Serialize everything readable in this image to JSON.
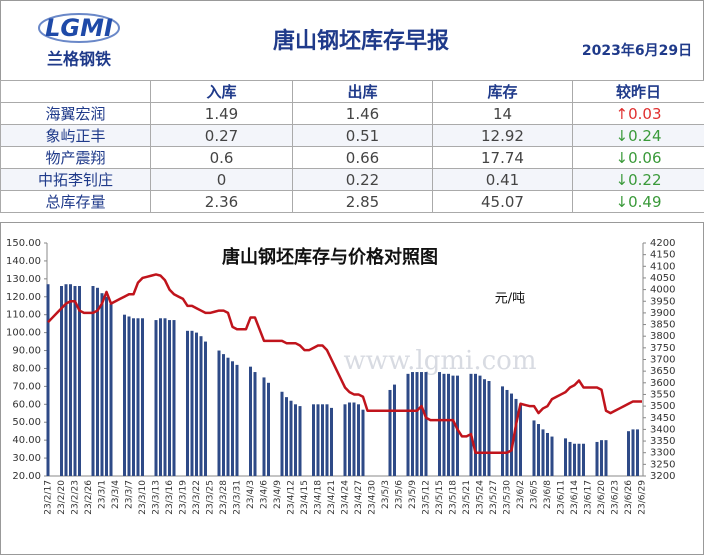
{
  "header": {
    "logo": "LGMI",
    "logo_sub": "兰格钢铁",
    "title": "唐山钢坯库存早报",
    "date": "2023年6月29日"
  },
  "table": {
    "columns": [
      "入库",
      "出库",
      "库存",
      "较昨日"
    ],
    "rows": [
      [
        "海翼宏润",
        1.49,
        1.46,
        14,
        "↑0.03"
      ],
      [
        "象屿正丰",
        0.27,
        0.51,
        12.92,
        "↓0.24"
      ],
      [
        "物产震翔",
        0.6,
        0.66,
        17.74,
        "↓0.06"
      ],
      [
        "中拓李钊庄",
        0,
        0.22,
        0.41,
        "↓0.22"
      ],
      [
        "总库存量",
        2.36,
        2.85,
        45.07,
        "↓0.49"
      ]
    ],
    "change_colors": [
      "#e03030",
      "#3a9a3a",
      "#3a9a3a",
      "#3a9a3a",
      "#3a9a3a"
    ]
  },
  "chart_data": {
    "type": "bar_line",
    "title": "唐山钢坯库存与价格对照图",
    "y2_unit": "元/吨",
    "watermark": "www.lgmi.com",
    "categories": [
      "23/2/17",
      null,
      null,
      "23/2/20",
      null,
      null,
      "23/2/23",
      null,
      null,
      "23/2/26",
      null,
      null,
      "23/3/1",
      null,
      null,
      "23/3/4",
      null,
      null,
      "23/3/7",
      null,
      null,
      "23/3/10",
      null,
      null,
      "23/3/13",
      null,
      null,
      "23/3/16",
      null,
      null,
      "23/3/19",
      null,
      null,
      "23/3/22",
      null,
      null,
      "23/3/25",
      null,
      null,
      "23/3/28",
      null,
      null,
      "23/3/31",
      null,
      null,
      "23/4/3",
      null,
      null,
      "23/4/6",
      null,
      null,
      "23/4/9",
      null,
      null,
      "23/4/12",
      null,
      null,
      "23/4/15",
      null,
      null,
      "23/4/18",
      null,
      null,
      "23/4/21",
      null,
      null,
      "23/4/24",
      null,
      null,
      "23/4/27",
      null,
      null,
      "23/4/30",
      null,
      null,
      "23/5/3",
      null,
      null,
      "23/5/6",
      null,
      null,
      "23/5/9",
      null,
      null,
      "23/5/12",
      null,
      null,
      "23/5/15",
      null,
      null,
      "23/5/18",
      null,
      null,
      "23/5/21",
      null,
      null,
      "23/5/24",
      null,
      null,
      "23/5/27",
      null,
      null,
      "23/5/30",
      null,
      null,
      "23/6/2",
      null,
      null,
      "23/6/5",
      null,
      null,
      "23/6/8",
      null,
      null,
      "23/6/11",
      null,
      null,
      "23/6/14",
      null,
      null,
      "23/6/17",
      null,
      null,
      "23/6/20",
      null,
      null,
      "23/6/23",
      null,
      null,
      "23/6/26",
      null,
      null,
      "23/6/29"
    ],
    "series": [
      {
        "type": "bar",
        "color": "#2e4a87",
        "values": [
          127,
          null,
          null,
          126,
          127,
          127,
          126,
          126,
          null,
          null,
          126,
          125,
          122,
          120,
          116,
          null,
          null,
          110,
          109,
          108,
          108,
          108,
          null,
          null,
          107,
          108,
          108,
          107,
          107,
          null,
          null,
          101,
          101,
          100,
          98,
          95,
          null,
          null,
          90,
          88,
          86,
          84,
          82,
          null,
          null,
          81,
          78,
          null,
          75,
          72,
          null,
          null,
          67,
          64,
          62,
          60,
          59,
          null,
          null,
          60,
          60,
          60,
          60,
          58,
          null,
          null,
          60,
          61,
          61,
          60,
          57,
          null,
          null,
          null,
          null,
          null,
          68,
          71,
          null,
          null,
          77,
          78,
          78,
          78,
          78,
          null,
          null,
          78,
          77,
          77,
          76,
          76,
          null,
          null,
          77,
          77,
          76,
          74,
          73,
          null,
          null,
          70,
          68,
          66,
          63,
          60,
          null,
          null,
          51,
          49,
          46,
          44,
          42,
          null,
          null,
          41,
          39,
          38,
          38,
          38,
          null,
          null,
          39,
          40,
          40,
          null,
          null,
          null,
          null,
          45,
          46,
          46,
          null
        ]
      },
      {
        "type": "line",
        "axis": "y2",
        "color": "#c0141c",
        "values": [
          3860,
          3880,
          3900,
          3920,
          3940,
          3950,
          3950,
          3910,
          3900,
          3900,
          3900,
          3910,
          3940,
          3990,
          3940,
          3950,
          3960,
          3970,
          3980,
          3980,
          4030,
          4050,
          4055,
          4060,
          4065,
          4060,
          4040,
          4000,
          3980,
          3970,
          3960,
          3930,
          3930,
          3920,
          3910,
          3900,
          3900,
          3905,
          3910,
          3910,
          3900,
          3840,
          3830,
          3830,
          3830,
          3880,
          3880,
          3830,
          3780,
          3780,
          3780,
          3780,
          3780,
          3770,
          3770,
          3770,
          3760,
          3740,
          3740,
          3750,
          3760,
          3760,
          3740,
          3700,
          3660,
          3620,
          3580,
          3560,
          3550,
          3550,
          3540,
          3480,
          3480,
          3480,
          3480,
          3480,
          3480,
          3480,
          3480,
          3480,
          3480,
          3480,
          3480,
          3500,
          3450,
          3440,
          3440,
          3440,
          3440,
          3440,
          3440,
          3400,
          3370,
          3370,
          3380,
          3300,
          3300,
          3300,
          3300,
          3300,
          3300,
          3300,
          3300,
          3310,
          3420,
          3510,
          3505,
          3500,
          3500,
          3470,
          3490,
          3500,
          3530,
          3540,
          3550,
          3560,
          3580,
          3590,
          3610,
          3580,
          3580,
          3580,
          3580,
          3570,
          3480,
          3470,
          3480,
          3490,
          3500,
          3510,
          3520,
          3520,
          3520
        ]
      }
    ],
    "ylim": [
      20,
      150
    ],
    "yticks": [
      {
        "value": 20,
        "label": "20.00"
      },
      {
        "value": 30,
        "label": "30.00"
      },
      {
        "value": 40,
        "label": "40.00"
      },
      {
        "value": 50,
        "label": "50.00"
      },
      {
        "value": 60,
        "label": "60.00"
      },
      {
        "value": 70,
        "label": "70.00"
      },
      {
        "value": 80,
        "label": "80.00"
      },
      {
        "value": 90,
        "label": "90.00"
      },
      {
        "value": 100,
        "label": "100.00"
      },
      {
        "value": 110,
        "label": "110.00"
      },
      {
        "value": 120,
        "label": "120.00"
      },
      {
        "value": 130,
        "label": "130.00"
      },
      {
        "value": 140,
        "label": "140.00"
      },
      {
        "value": 150,
        "label": "150.00"
      }
    ],
    "y2lim": [
      3200,
      4200
    ],
    "y2ticks": [
      3200,
      3250,
      3300,
      3350,
      3400,
      3450,
      3500,
      3550,
      3600,
      3650,
      3700,
      3750,
      3800,
      3850,
      3900,
      3950,
      4000,
      4050,
      4100,
      4150,
      4200
    ]
  }
}
